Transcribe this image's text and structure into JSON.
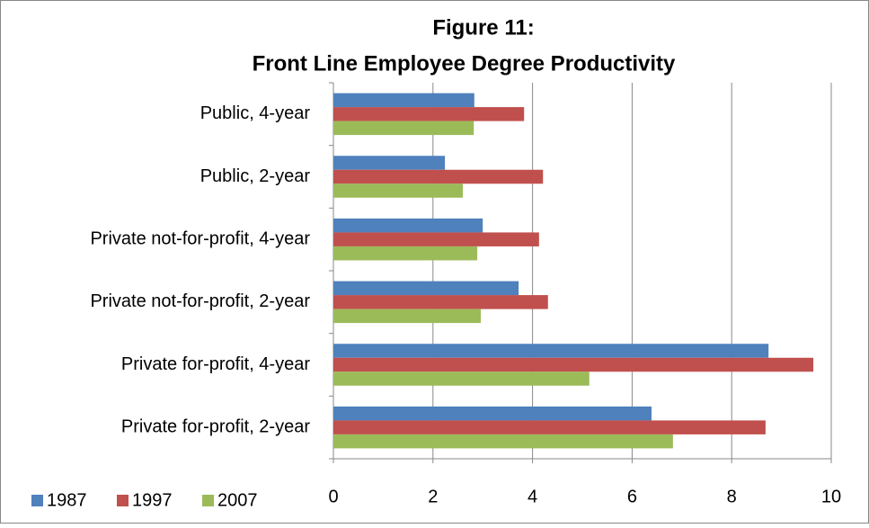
{
  "chart_data": {
    "type": "barh",
    "title": "Figure 11:",
    "subtitle": "Front Line Employee Degree Productivity",
    "categories": [
      "Public, 4-year",
      "Public, 2-year",
      "Private not-for-profit, 4-year",
      "Private not-for-profit, 2-year",
      "Private for-profit, 4-year",
      "Private for-profit, 2-year"
    ],
    "series": [
      {
        "name": "1987",
        "color": "#4f81bd",
        "values": [
          2.83,
          2.24,
          3.0,
          3.72,
          8.74,
          6.39
        ]
      },
      {
        "name": "1997",
        "color": "#c0504d",
        "values": [
          3.83,
          4.21,
          4.13,
          4.31,
          9.64,
          8.68
        ]
      },
      {
        "name": "2007",
        "color": "#9bbb59",
        "values": [
          2.82,
          2.6,
          2.89,
          2.96,
          5.14,
          6.82
        ]
      }
    ],
    "xlim": [
      0,
      10
    ],
    "xticks": [
      0,
      2,
      4,
      6,
      8,
      10
    ],
    "grid": true,
    "legend": "bottom-left"
  }
}
